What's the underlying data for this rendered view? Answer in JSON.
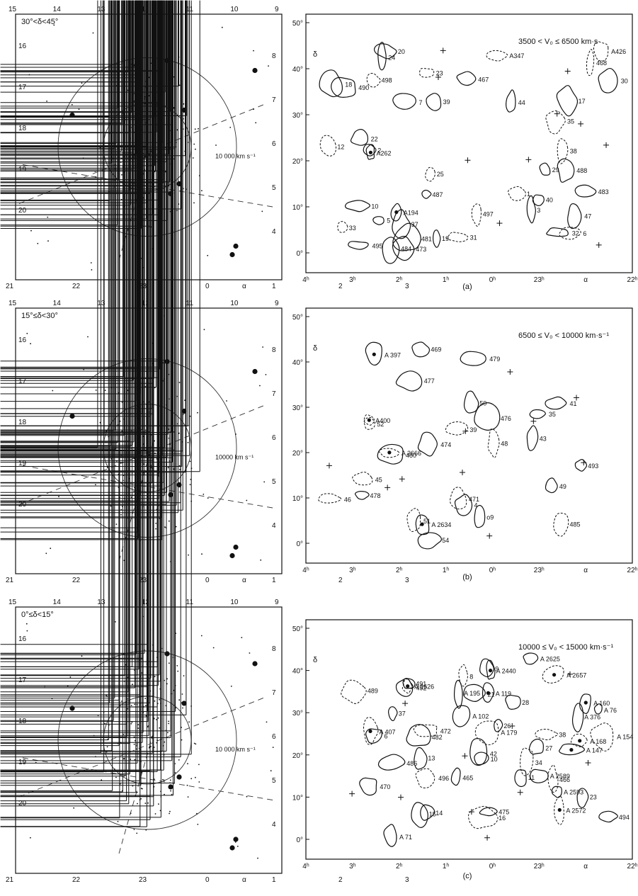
{
  "panels": [
    {
      "letter": "(a)",
      "dec_label": "30°<δ<45°",
      "circle_label": "10 000 km s⁻¹",
      "vel_label": "3500 < V₀ ≤ 6500 km·s",
      "contours": [
        "A426",
        "A347",
        "47",
        "37",
        "31",
        "A262",
        "17",
        "18",
        "40",
        "32",
        "20",
        "6",
        "10",
        "38",
        "5",
        "490",
        "484",
        "33",
        "12",
        "3",
        "35",
        "473",
        "44",
        "29",
        "24",
        "487",
        "481",
        "495",
        "2",
        "1",
        "23",
        "19",
        "7",
        "A194",
        "25",
        "483",
        "39",
        "22",
        "30",
        "498",
        "497",
        "488",
        "467",
        "468"
      ]
    },
    {
      "letter": "(b)",
      "dec_label": "15°≤δ<30°",
      "circle_label": "10000 km s⁻¹",
      "vel_label": "6500 ≤ V₀ < 10000 km·s⁻¹",
      "contours": [
        "471",
        "477",
        "A 2634",
        "493",
        "4",
        "o9",
        "A 2666",
        "480",
        "474",
        "48",
        "479",
        "A 397",
        "46",
        "54",
        "52",
        "50",
        "35",
        "478",
        "469",
        "476",
        "51",
        "41",
        "A400",
        "45",
        "39",
        "43",
        "49",
        "485"
      ]
    },
    {
      "letter": "(c)",
      "dec_label": "0°≤δ<15°",
      "circle_label": "10 000 km s⁻¹",
      "vel_label": "10000 ≤ V₀ < 15000 km·s⁻¹",
      "contours": [
        "13",
        "A 376",
        "42",
        "37",
        "A 407",
        "38",
        "27",
        "6",
        "A 71",
        "10",
        "16",
        "28",
        "A 195",
        "A 179",
        "26",
        "11",
        "A 154",
        "A 160",
        "21",
        "15",
        "8",
        "A 76",
        "A 2626",
        "492",
        "A 2625",
        "486",
        "A 2572",
        "A 2589",
        "A 2593",
        "489",
        "466",
        "496",
        "494",
        "A 2657",
        "482",
        "465",
        "A 147",
        "23",
        "9",
        "A 168",
        "A 119",
        "14",
        "A 102",
        "34",
        "491",
        "472",
        "475",
        "470",
        "A 2440"
      ]
    }
  ],
  "left_axis": {
    "top_ticks": [
      "15",
      "14",
      "13",
      "12",
      "11",
      "10",
      "9"
    ],
    "bottom_ticks": [
      "21",
      "22",
      "23",
      "0",
      "1",
      "2",
      "3"
    ],
    "left_ticks": [
      "16",
      "17",
      "18",
      "19",
      "20"
    ],
    "right_ticks": [
      "8",
      "7",
      "6",
      "5",
      "4"
    ],
    "alpha": "α"
  },
  "right_axis": {
    "x_ticks": [
      "4ʰ",
      "3ʰ",
      "2ʰ",
      "1ʰ",
      "0ʰ",
      "23ʰ",
      "α",
      "22ʰ"
    ],
    "y_ticks": [
      "50°",
      "40°",
      "30°",
      "20°",
      "10°",
      "0°"
    ],
    "delta": "δ"
  }
}
